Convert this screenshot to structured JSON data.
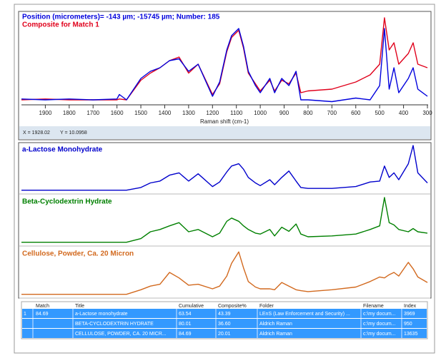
{
  "main_plot": {
    "type": "line",
    "title": "Position (micrometers)= -143 µm; -15745 µm; Number: 185",
    "subtitle": "Composite for Match 1",
    "x_label": "Raman shift (cm-1)",
    "x": [
      2000,
      1900,
      1800,
      1700,
      1600,
      1590,
      1560,
      1500,
      1460,
      1420,
      1380,
      1340,
      1300,
      1260,
      1200,
      1170,
      1140,
      1120,
      1090,
      1070,
      1050,
      1020,
      1000,
      960,
      940,
      910,
      880,
      850,
      830,
      800,
      700,
      600,
      540,
      500,
      480,
      460,
      440,
      420,
      380,
      360,
      340,
      300
    ],
    "xlim": [
      2000,
      300
    ],
    "ylim": [
      0,
      100
    ],
    "xticks": [
      1900,
      1800,
      1700,
      1600,
      1500,
      1400,
      1300,
      1200,
      1100,
      1000,
      900,
      800,
      700,
      600,
      500,
      400,
      300
    ],
    "series": [
      {
        "color": "#e0001b",
        "values": [
          4,
          5,
          4,
          4,
          4,
          5,
          4,
          26,
          34,
          40,
          48,
          52,
          34,
          44,
          10,
          22,
          58,
          74,
          82,
          62,
          34,
          22,
          14,
          26,
          14,
          26,
          22,
          34,
          12,
          14,
          16,
          24,
          32,
          44,
          96,
          60,
          68,
          44,
          56,
          68,
          44,
          40
        ]
      },
      {
        "color": "#0000dd",
        "values": [
          5,
          4,
          5,
          4,
          5,
          10,
          4,
          28,
          36,
          40,
          48,
          50,
          36,
          44,
          8,
          24,
          60,
          76,
          84,
          64,
          36,
          20,
          12,
          28,
          12,
          28,
          20,
          36,
          4,
          4,
          2,
          6,
          4,
          20,
          84,
          16,
          40,
          12,
          28,
          40,
          16,
          8
        ]
      }
    ]
  },
  "cursor": {
    "x_text": "X = 1928.02",
    "y_text": "Y = 10.0958"
  },
  "library_plots": [
    {
      "type": "line",
      "title": "a-Lactose Monohydrate",
      "color": "#0000cc",
      "ylim": [
        0,
        100
      ],
      "values": [
        2,
        2,
        2,
        2,
        2,
        2,
        2,
        8,
        18,
        22,
        35,
        40,
        22,
        38,
        10,
        20,
        42,
        55,
        60,
        48,
        30,
        18,
        12,
        25,
        14,
        30,
        44,
        22,
        8,
        6,
        6,
        10,
        20,
        22,
        55,
        30,
        40,
        25,
        60,
        100,
        40,
        18
      ]
    },
    {
      "type": "line",
      "title": "Beta-Cyclodextrin Hydrate",
      "color": "#008000",
      "ylim": [
        0,
        100
      ],
      "values": [
        2,
        2,
        2,
        2,
        2,
        2,
        2,
        10,
        25,
        30,
        38,
        45,
        25,
        30,
        14,
        22,
        48,
        55,
        48,
        38,
        30,
        22,
        20,
        30,
        16,
        35,
        26,
        42,
        20,
        14,
        16,
        20,
        30,
        38,
        100,
        45,
        40,
        30,
        25,
        32,
        25,
        22
      ]
    },
    {
      "type": "line",
      "title": "Cellulose, Powder, Ca. 20 Micron",
      "color": "#d2691e",
      "ylim": [
        0,
        100
      ],
      "values": [
        2,
        2,
        2,
        2,
        2,
        2,
        2,
        12,
        20,
        24,
        50,
        38,
        22,
        24,
        14,
        20,
        42,
        70,
        95,
        60,
        30,
        18,
        14,
        14,
        12,
        28,
        20,
        12,
        10,
        8,
        12,
        18,
        30,
        40,
        38,
        45,
        50,
        42,
        72,
        58,
        40,
        28
      ]
    }
  ],
  "table": {
    "columns": [
      "Match",
      "Title",
      "Cumulative",
      "Composite%",
      "Folder",
      "Filename",
      "Index"
    ],
    "rows": [
      {
        "rank": "1",
        "match": "84.69",
        "title": "a-Lactose monohydrate",
        "cumulative": "63.54",
        "composite": "43.39",
        "folder": "LEnS (Law Enforcement and Security) ...",
        "filename": "c:\\my docum...",
        "index": "3969"
      },
      {
        "title": "BETA-CYCLODEXTRIN HYDRATE",
        "cumulative": "80.01",
        "composite": "36.60",
        "folder": "Aldrich Raman",
        "filename": "c:\\my docum...",
        "index": "950"
      },
      {
        "title": "CELLULOSE, POWDER, CA. 20 MICR...",
        "cumulative": "84.69",
        "composite": "20.01",
        "folder": "Aldrich Raman",
        "filename": "c:\\my docum...",
        "index": "13635"
      }
    ]
  }
}
